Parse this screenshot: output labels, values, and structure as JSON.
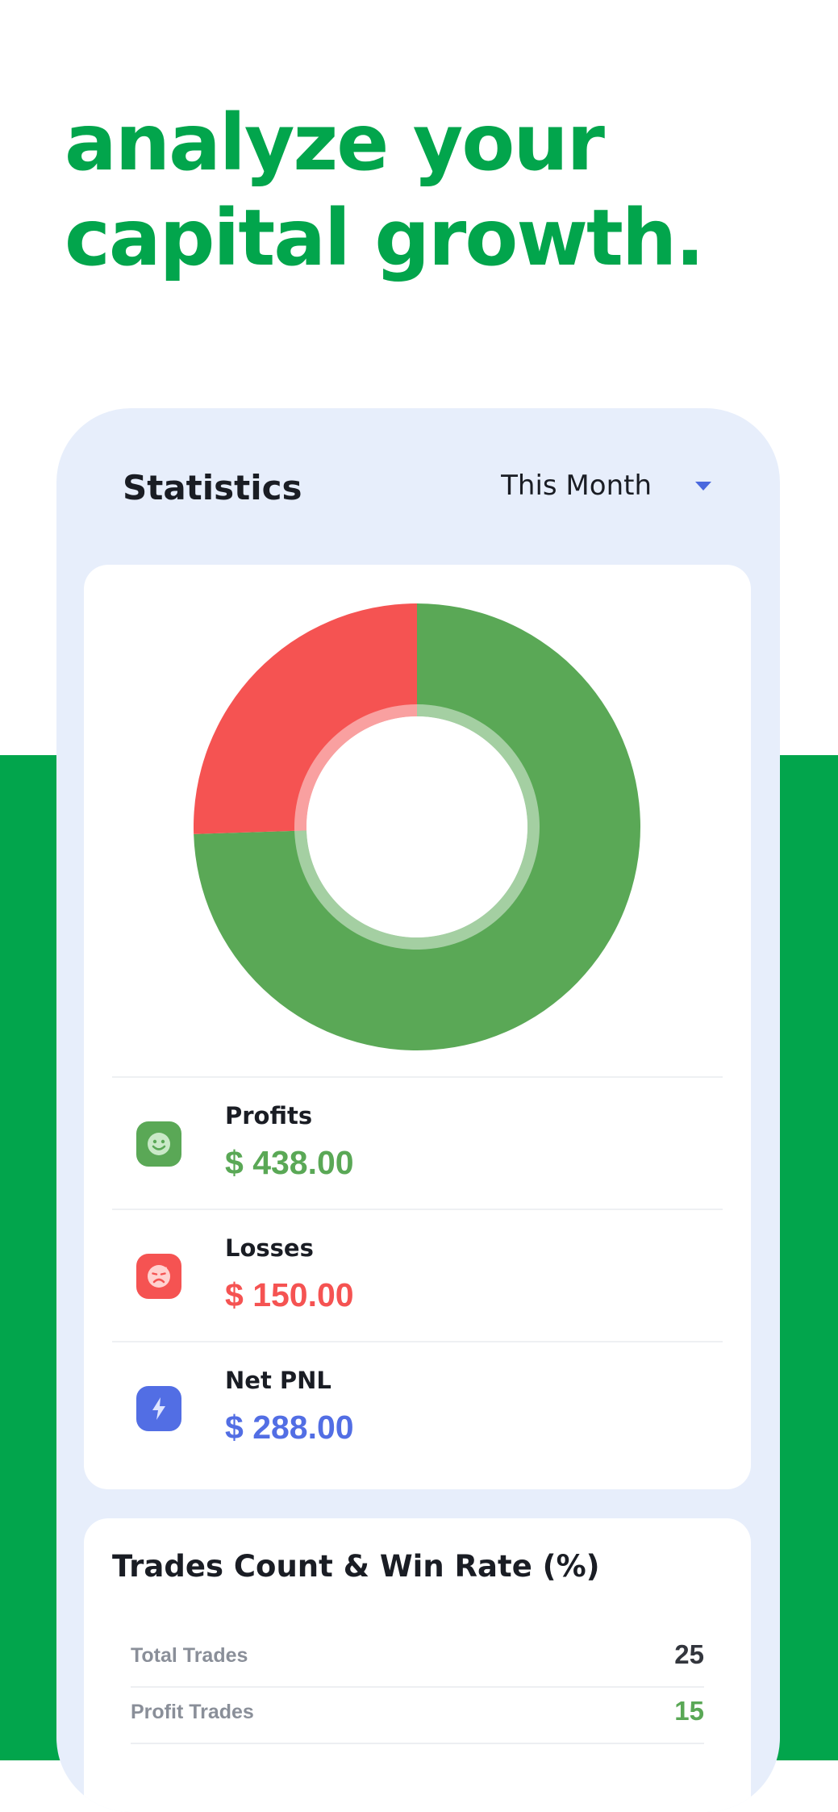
{
  "headline": {
    "line1": "analyze your",
    "line2": "capital growth."
  },
  "statistics": {
    "title": "Statistics",
    "period": {
      "selected": "This Month"
    }
  },
  "legend": [
    {
      "name": "Profits",
      "value": "$ 438.00",
      "icon": "smile-face-icon",
      "color": "#5aa856"
    },
    {
      "name": "Losses",
      "value": "$ 150.00",
      "icon": "sad-face-icon",
      "color": "#f55352"
    },
    {
      "name": "Net PNL",
      "value": "$ 288.00",
      "icon": "lightning-bolt-icon",
      "color": "#526ee4"
    }
  ],
  "chart_data": {
    "type": "pie",
    "categories": [
      "Profits",
      "Losses"
    ],
    "values": [
      438,
      150
    ],
    "colors": [
      "#5aa856",
      "#f55352"
    ],
    "donut": true
  },
  "trades": {
    "title": "Trades Count & Win Rate (%)",
    "rows": [
      {
        "label": "Total Trades",
        "value": "25",
        "color": "#33363d"
      },
      {
        "label": "Profit Trades",
        "value": "15",
        "color": "#5aa856"
      }
    ]
  }
}
